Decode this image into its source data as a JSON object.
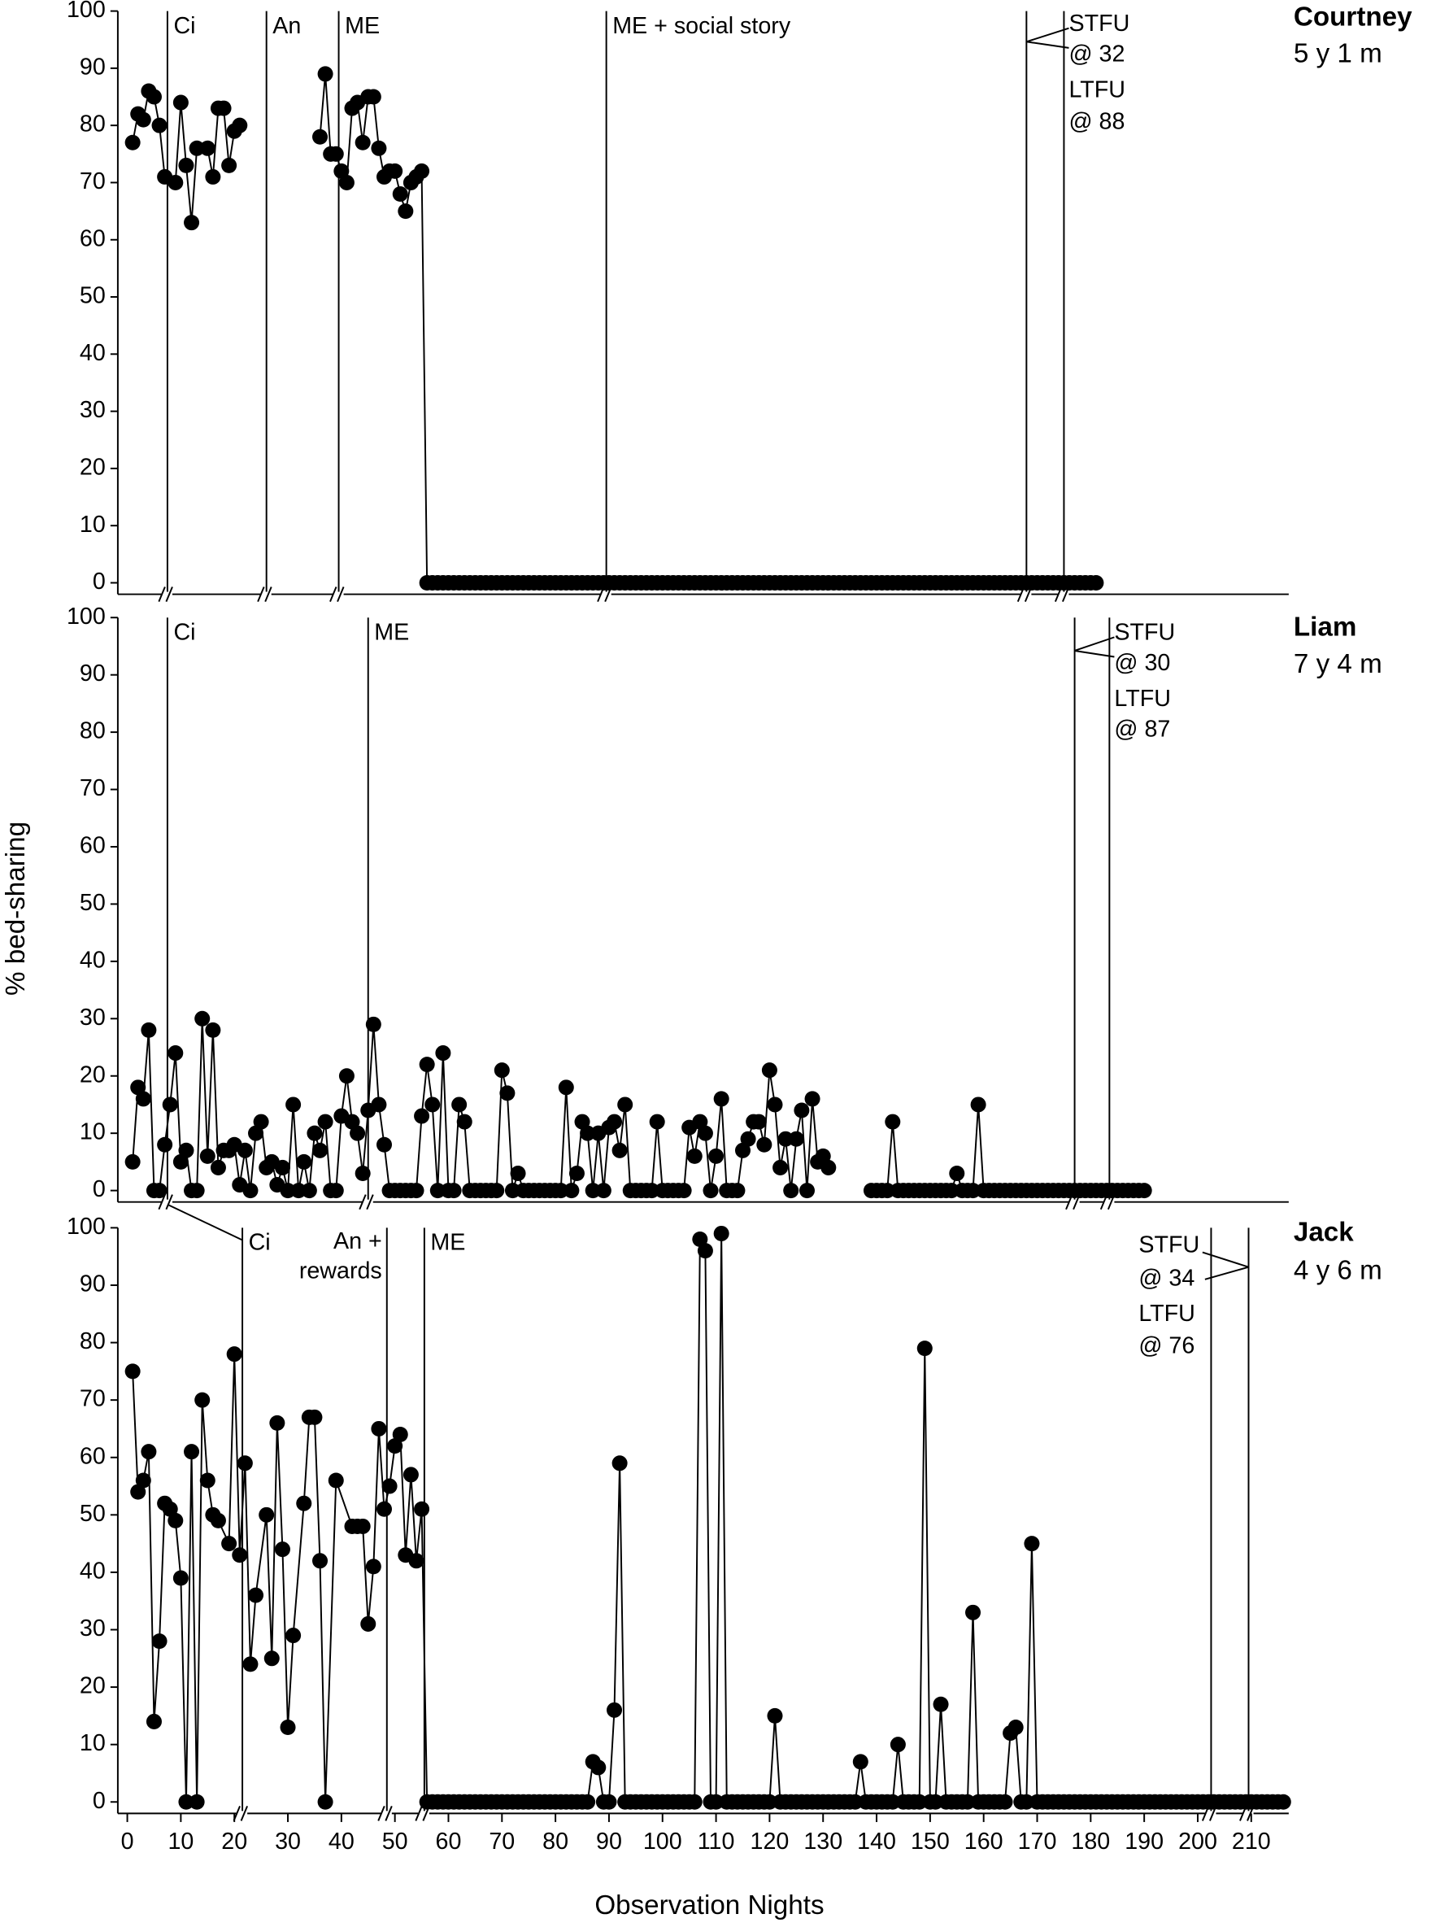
{
  "chart_data": [
    {
      "type": "line",
      "title": "Courtney",
      "subtitle": "5 y 1 m",
      "color": "#000000",
      "xlim": [
        -2,
        217
      ],
      "ylim": [
        -2,
        100
      ],
      "yticks": [
        0,
        10,
        20,
        30,
        40,
        50,
        60,
        70,
        80,
        90,
        100
      ],
      "phases": [
        {
          "x": 7.5,
          "label": "Ci"
        },
        {
          "x": 26,
          "label": "An"
        },
        {
          "x": 39.5,
          "label": "ME"
        },
        {
          "x": 89.5,
          "label": "ME + social story"
        }
      ],
      "followups": [
        {
          "x": 168,
          "label": "STFU",
          "sublabel": "@ 32"
        },
        {
          "x": 175,
          "label": "LTFU",
          "sublabel": "@ 88"
        }
      ],
      "x": [
        1,
        2,
        3,
        4,
        5,
        6,
        7,
        9,
        10,
        11,
        12,
        13,
        15,
        16,
        17,
        18,
        19,
        20,
        21,
        28,
        36,
        37,
        38,
        39,
        40,
        41,
        42,
        43,
        44,
        45,
        46,
        47,
        48,
        49,
        50,
        51,
        52,
        53,
        54,
        55,
        56,
        57,
        58,
        59,
        60,
        61,
        62,
        63,
        64,
        65,
        66,
        67,
        68,
        69,
        70,
        71,
        72,
        73,
        74,
        75,
        76,
        77,
        78,
        79,
        80,
        81,
        82,
        83,
        84,
        85,
        86,
        87,
        88,
        89,
        90,
        91,
        92,
        93,
        94,
        95,
        96,
        97,
        98,
        99,
        100,
        101,
        102,
        103,
        104,
        105,
        106,
        107,
        108,
        109,
        110,
        111,
        112,
        113,
        114,
        115,
        116,
        117,
        118,
        119,
        120,
        121,
        122,
        123,
        124,
        125,
        126,
        127,
        128,
        129,
        130,
        131,
        132,
        133,
        134,
        135,
        136,
        137,
        138,
        139,
        140,
        141,
        142,
        143,
        144,
        145,
        146,
        147,
        148,
        149,
        150,
        151,
        152,
        153,
        154,
        155,
        156,
        157,
        158,
        159,
        160,
        161,
        162,
        163,
        164,
        165,
        166,
        167,
        168,
        169,
        170,
        171,
        172,
        173,
        174,
        175,
        176,
        177,
        178,
        179,
        180,
        181
      ],
      "values": [
        77,
        82,
        81,
        86,
        85,
        80,
        71,
        70,
        84,
        73,
        63,
        76,
        76,
        71,
        83,
        83,
        73,
        79,
        80,
        null,
        78,
        89,
        75,
        75,
        72,
        70,
        83,
        84,
        77,
        85,
        85,
        76,
        71,
        72,
        72,
        68,
        65,
        70,
        71,
        72,
        0,
        0,
        0,
        0,
        0,
        0,
        0,
        0,
        0,
        0,
        0,
        0,
        0,
        0,
        0,
        0,
        0,
        0,
        0,
        0,
        0,
        0,
        0,
        0,
        0,
        0,
        0,
        0,
        0,
        0,
        0,
        0,
        0,
        0,
        0,
        0,
        0,
        0,
        0,
        0,
        0,
        0,
        0,
        0,
        0,
        0,
        0,
        0,
        0,
        0,
        0,
        0,
        0,
        0,
        0,
        0,
        0,
        0,
        0,
        0,
        0,
        0,
        0,
        0,
        0,
        0,
        0,
        0,
        0,
        0,
        0,
        0,
        0,
        0,
        0,
        0,
        0,
        0,
        0,
        0,
        0,
        0,
        0,
        0,
        0,
        0,
        0,
        0,
        0,
        0,
        0,
        0,
        0,
        0,
        0,
        0,
        0,
        0,
        0,
        0,
        0,
        0,
        0,
        0,
        0,
        0,
        0,
        0,
        0,
        0,
        0,
        0,
        0,
        0,
        0,
        0,
        0,
        0,
        0,
        0,
        0,
        0,
        0,
        0,
        0,
        0
      ]
    },
    {
      "type": "line",
      "title": "Liam",
      "subtitle": "7 y 4 m",
      "color": "#000000",
      "ylabel": "% bed-sharing",
      "xlim": [
        -2,
        217
      ],
      "ylim": [
        -2,
        100
      ],
      "yticks": [
        0,
        10,
        20,
        30,
        40,
        50,
        60,
        70,
        80,
        90,
        100
      ],
      "phases": [
        {
          "x": 7.5,
          "label": "Ci"
        },
        {
          "x": 45,
          "label": "ME"
        }
      ],
      "followups": [
        {
          "x": 177,
          "label": "STFU",
          "sublabel": "@ 30"
        },
        {
          "x": 183.5,
          "label": "LTFU",
          "sublabel": "@ 87"
        }
      ],
      "x": [
        1,
        2,
        3,
        4,
        5,
        6,
        7,
        8,
        9,
        10,
        11,
        12,
        13,
        14,
        15,
        16,
        17,
        18,
        19,
        20,
        21,
        22,
        23,
        24,
        25,
        26,
        27,
        28,
        29,
        30,
        31,
        32,
        33,
        34,
        35,
        36,
        37,
        38,
        39,
        40,
        41,
        42,
        43,
        44,
        45,
        46,
        47,
        48,
        49,
        50,
        51,
        52,
        53,
        54,
        55,
        56,
        57,
        58,
        59,
        60,
        61,
        62,
        63,
        64,
        65,
        66,
        67,
        68,
        69,
        70,
        71,
        72,
        73,
        74,
        75,
        76,
        77,
        78,
        79,
        80,
        81,
        82,
        83,
        84,
        85,
        86,
        87,
        88,
        89,
        90,
        91,
        92,
        93,
        94,
        95,
        96,
        97,
        98,
        99,
        100,
        101,
        102,
        103,
        104,
        105,
        106,
        107,
        108,
        109,
        110,
        111,
        112,
        113,
        114,
        115,
        116,
        117,
        118,
        119,
        120,
        121,
        122,
        123,
        124,
        125,
        126,
        127,
        128,
        129,
        130,
        131,
        135,
        139,
        140,
        141,
        142,
        143,
        144,
        145,
        146,
        147,
        148,
        149,
        150,
        151,
        152,
        153,
        154,
        155,
        156,
        157,
        158,
        159,
        160,
        161,
        162,
        163,
        164,
        165,
        166,
        167,
        168,
        169,
        170,
        171,
        172,
        173,
        174,
        175,
        176,
        177,
        178,
        179,
        180,
        181,
        182,
        183,
        184,
        185,
        186,
        187,
        188,
        189,
        190
      ],
      "values": [
        5,
        18,
        16,
        28,
        0,
        0,
        8,
        15,
        24,
        5,
        7,
        0,
        0,
        30,
        6,
        28,
        4,
        7,
        7,
        8,
        1,
        7,
        0,
        10,
        12,
        4,
        5,
        1,
        4,
        0,
        15,
        0,
        5,
        0,
        10,
        7,
        12,
        0,
        0,
        13,
        20,
        12,
        10,
        3,
        14,
        29,
        15,
        8,
        0,
        0,
        0,
        0,
        0,
        0,
        13,
        22,
        15,
        0,
        24,
        0,
        0,
        15,
        12,
        0,
        0,
        0,
        0,
        0,
        0,
        21,
        17,
        0,
        3,
        0,
        0,
        0,
        0,
        0,
        0,
        0,
        0,
        18,
        0,
        3,
        12,
        10,
        0,
        10,
        0,
        11,
        12,
        7,
        15,
        0,
        0,
        0,
        0,
        0,
        12,
        0,
        0,
        0,
        0,
        0,
        11,
        6,
        12,
        10,
        0,
        6,
        16,
        0,
        0,
        0,
        7,
        9,
        12,
        12,
        8,
        21,
        15,
        4,
        9,
        0,
        9,
        14,
        0,
        16,
        5,
        6,
        4,
        null,
        0,
        0,
        0,
        0,
        12,
        0,
        0,
        0,
        0,
        0,
        0,
        0,
        0,
        0,
        0,
        0,
        3,
        0,
        0,
        0,
        15,
        0,
        0,
        0,
        0,
        0,
        0,
        0,
        0,
        0,
        0,
        0,
        0,
        0,
        0,
        0,
        0,
        0,
        0,
        0,
        0,
        0,
        0,
        0,
        0,
        0,
        0,
        0,
        0,
        0,
        0,
        0
      ]
    },
    {
      "type": "line",
      "title": "Jack",
      "subtitle": "4 y 6 m",
      "color": "#000000",
      "xlabel": "Observation Nights",
      "xlim": [
        -2,
        217
      ],
      "ylim": [
        -2,
        100
      ],
      "yticks": [
        0,
        10,
        20,
        30,
        40,
        50,
        60,
        70,
        80,
        90,
        100
      ],
      "xticks": [
        0,
        10,
        20,
        30,
        40,
        50,
        60,
        70,
        80,
        90,
        100,
        110,
        120,
        130,
        140,
        150,
        160,
        170,
        180,
        190,
        200,
        210
      ],
      "phases": [
        {
          "x": 21.5,
          "label": "Ci"
        },
        {
          "x": 48.5,
          "label": [
            "An +",
            "rewards"
          ]
        },
        {
          "x": 55.5,
          "label": "ME"
        }
      ],
      "followups": [
        {
          "x": 202.5,
          "label": "STFU",
          "sublabel": "@ 34"
        },
        {
          "x": 209.5,
          "label": "LTFU",
          "sublabel": "@ 76"
        }
      ],
      "x": [
        1,
        2,
        3,
        4,
        5,
        6,
        7,
        8,
        9,
        10,
        11,
        12,
        13,
        14,
        15,
        16,
        17,
        19,
        20,
        21,
        22,
        23,
        24,
        26,
        27,
        28,
        29,
        30,
        31,
        33,
        34,
        35,
        36,
        37,
        39,
        42,
        43,
        44,
        45,
        46,
        47,
        48,
        49,
        50,
        51,
        52,
        53,
        54,
        55,
        56,
        57,
        58,
        59,
        60,
        61,
        62,
        63,
        64,
        65,
        66,
        67,
        68,
        69,
        70,
        71,
        72,
        73,
        74,
        75,
        76,
        77,
        78,
        79,
        80,
        81,
        82,
        83,
        84,
        85,
        86,
        87,
        88,
        89,
        90,
        91,
        92,
        93,
        94,
        95,
        96,
        97,
        98,
        99,
        100,
        101,
        102,
        103,
        104,
        105,
        106,
        107,
        108,
        109,
        110,
        111,
        112,
        113,
        114,
        115,
        116,
        117,
        118,
        119,
        120,
        121,
        122,
        123,
        124,
        125,
        126,
        127,
        128,
        129,
        130,
        131,
        132,
        133,
        134,
        135,
        136,
        137,
        138,
        139,
        140,
        141,
        142,
        143,
        144,
        145,
        146,
        147,
        148,
        149,
        150,
        151,
        152,
        153,
        154,
        155,
        156,
        157,
        158,
        159,
        160,
        161,
        162,
        163,
        164,
        165,
        166,
        167,
        168,
        169,
        170,
        171,
        172,
        173,
        174,
        175,
        176,
        177,
        178,
        179,
        180,
        181,
        182,
        183,
        184,
        185,
        186,
        187,
        188,
        189,
        190,
        191,
        192,
        193,
        194,
        195,
        196,
        197,
        198,
        199,
        200,
        201,
        202,
        203,
        204,
        205,
        206,
        207,
        208,
        209,
        210,
        211,
        212,
        213,
        214,
        215,
        216
      ],
      "values": [
        75,
        54,
        56,
        61,
        14,
        28,
        52,
        51,
        49,
        39,
        0,
        61,
        0,
        70,
        56,
        50,
        49,
        45,
        78,
        43,
        59,
        24,
        36,
        50,
        25,
        66,
        44,
        13,
        29,
        52,
        67,
        67,
        42,
        0,
        56,
        48,
        48,
        48,
        31,
        41,
        65,
        51,
        55,
        62,
        64,
        43,
        57,
        42,
        51,
        0,
        0,
        0,
        0,
        0,
        0,
        0,
        0,
        0,
        0,
        0,
        0,
        0,
        0,
        0,
        0,
        0,
        0,
        0,
        0,
        0,
        0,
        0,
        0,
        0,
        0,
        0,
        0,
        0,
        0,
        0,
        7,
        6,
        0,
        0,
        16,
        59,
        0,
        0,
        0,
        0,
        0,
        0,
        0,
        0,
        0,
        0,
        0,
        0,
        0,
        0,
        98,
        96,
        0,
        0,
        99,
        0,
        0,
        0,
        0,
        0,
        0,
        0,
        0,
        0,
        15,
        0,
        0,
        0,
        0,
        0,
        0,
        0,
        0,
        0,
        0,
        0,
        0,
        0,
        0,
        0,
        7,
        0,
        0,
        0,
        0,
        0,
        0,
        10,
        0,
        0,
        0,
        0,
        79,
        0,
        0,
        17,
        0,
        0,
        0,
        0,
        0,
        33,
        0,
        0,
        0,
        0,
        0,
        0,
        12,
        13,
        0,
        0,
        45,
        0,
        0,
        0,
        0,
        0,
        0,
        0,
        0,
        0,
        0,
        0,
        0,
        0,
        0,
        0,
        0,
        0,
        0,
        0,
        0,
        0,
        0,
        0,
        0,
        0,
        0,
        0,
        0,
        0,
        0,
        0,
        0,
        0,
        0,
        0,
        0,
        0,
        0,
        0,
        0,
        0,
        0,
        0,
        0,
        0,
        0,
        0
      ]
    }
  ]
}
